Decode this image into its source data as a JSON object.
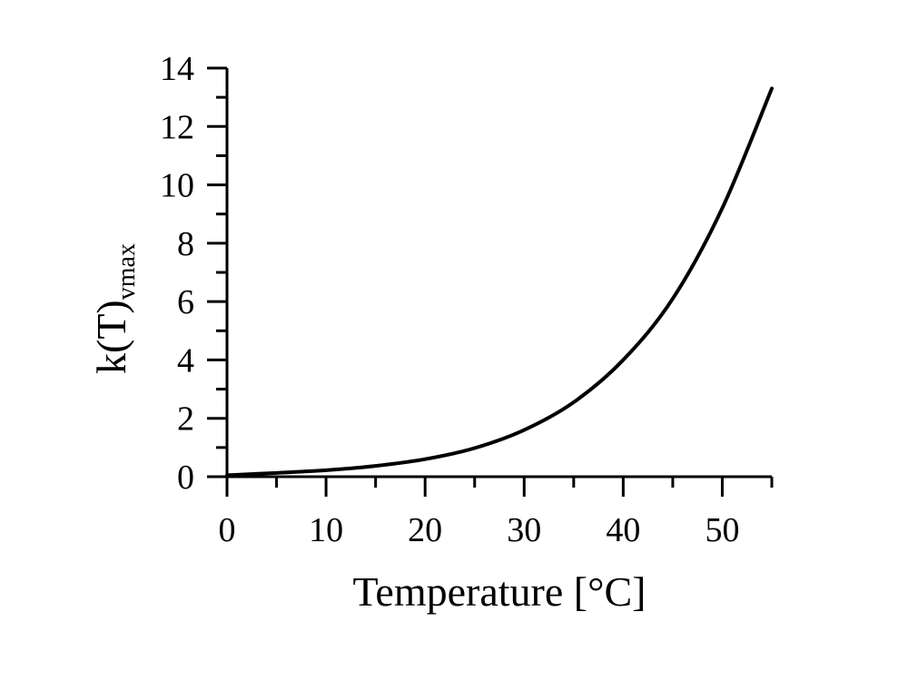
{
  "chart_data": {
    "type": "line",
    "xlabel": "Temperature [°C]",
    "ylabel_main": "k(T)",
    "ylabel_sub": "vmax",
    "xlim": [
      0,
      55
    ],
    "ylim": [
      0,
      14
    ],
    "x_ticks": [
      0,
      10,
      20,
      30,
      40,
      50
    ],
    "y_ticks": [
      0,
      2,
      4,
      6,
      8,
      10,
      12,
      14
    ],
    "x_minor_step": 5,
    "y_minor_step": 1,
    "grid": false,
    "series": [
      {
        "color": "#000000",
        "x": [
          0,
          5,
          10,
          15,
          20,
          25,
          30,
          35,
          40,
          45,
          50,
          55
        ],
        "y": [
          0.05,
          0.13,
          0.22,
          0.37,
          0.6,
          0.98,
          1.6,
          2.55,
          4.0,
          6.1,
          9.2,
          13.3
        ]
      }
    ]
  }
}
